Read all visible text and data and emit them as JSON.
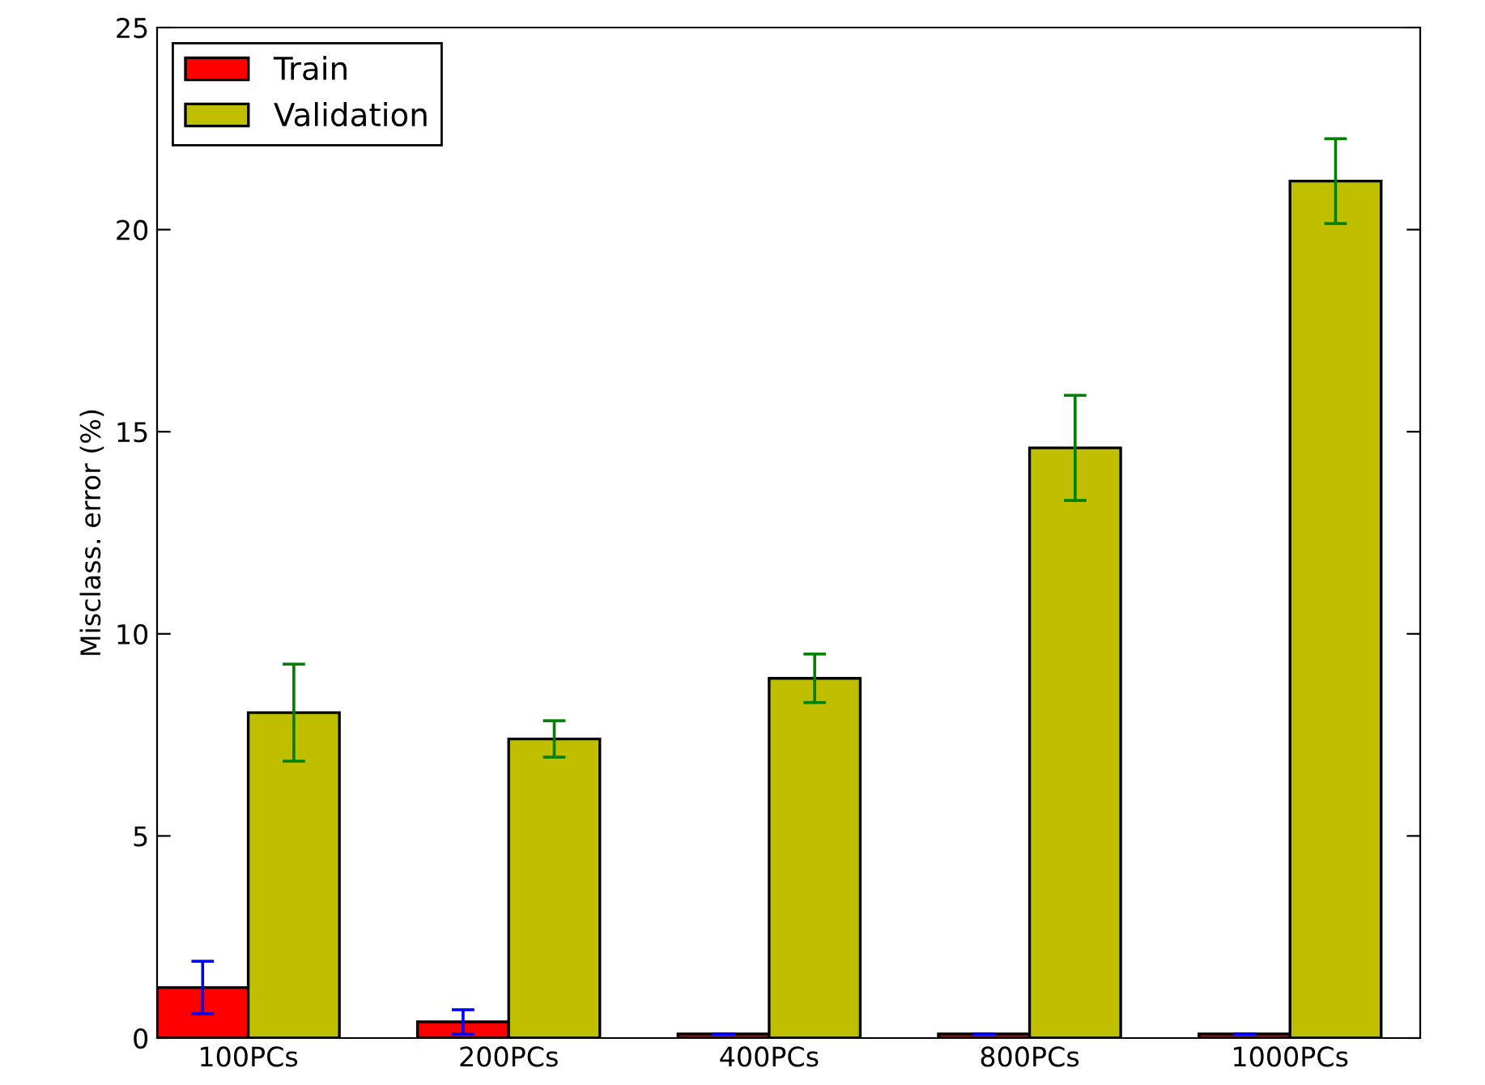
{
  "chart_data": {
    "type": "bar",
    "ylabel": "Misclass. error (%)",
    "categories": [
      "100PCs",
      "200PCs",
      "400PCs",
      "800PCs",
      "1000PCs"
    ],
    "series": [
      {
        "name": "Train",
        "color": "#ff0000",
        "values": [
          1.25,
          0.4,
          0.1,
          0.1,
          0.1
        ],
        "errors": [
          0.65,
          0.3,
          0,
          0,
          0
        ]
      },
      {
        "name": "Validation",
        "color": "#bfbf00",
        "values": [
          8.05,
          7.4,
          8.9,
          14.6,
          21.2
        ],
        "errors": [
          1.2,
          0.45,
          0.6,
          1.3,
          1.05
        ]
      }
    ],
    "ylim": [
      0,
      25
    ],
    "yticks": [
      0,
      5,
      10,
      15,
      20,
      25
    ],
    "grid": false,
    "legend": "top left"
  }
}
